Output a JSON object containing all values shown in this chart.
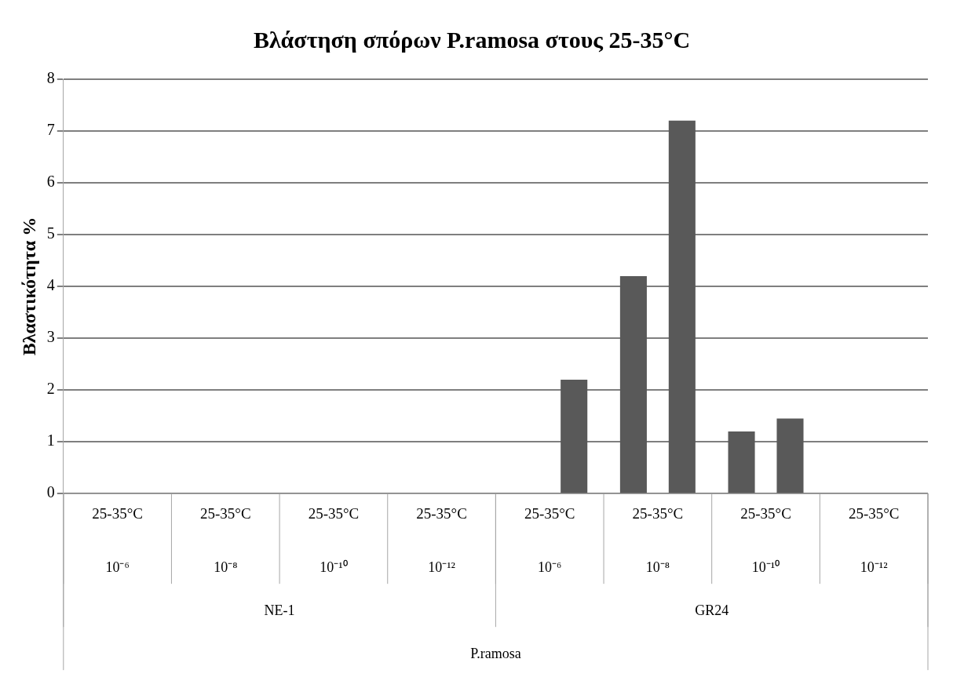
{
  "chart_data": {
    "type": "bar",
    "title": "Βλάστηση σπόρων P.ramosa στους 25-35°C",
    "ylabel": "Βλαστικότητα %",
    "categories": [
      "25-35°C",
      "25-35°C",
      "25-35°C",
      "25-35°C",
      "25-35°C",
      "25-35°C",
      "25-35°C",
      "25-35°C"
    ],
    "series": [
      {
        "color": "#595959",
        "values": [
          0,
          0,
          0,
          0,
          0,
          4.2,
          1.2,
          0
        ]
      },
      {
        "color": "#595959",
        "values": [
          0,
          0,
          0,
          0,
          2.2,
          7.2,
          1.45,
          0
        ]
      }
    ],
    "ylim": [
      0,
      8
    ],
    "yticks": [
      0,
      1,
      2,
      3,
      4,
      5,
      6,
      7,
      8
    ],
    "grid": "y",
    "legend": false,
    "annotations": [
      "10⁻⁶",
      "10⁻⁸",
      "10⁻¹⁰",
      "10⁻¹²",
      "10⁻⁶",
      "10⁻⁸",
      "10⁻¹⁰",
      "10⁻¹²",
      "NE-1",
      "GR24",
      "P.ramosa"
    ]
  }
}
